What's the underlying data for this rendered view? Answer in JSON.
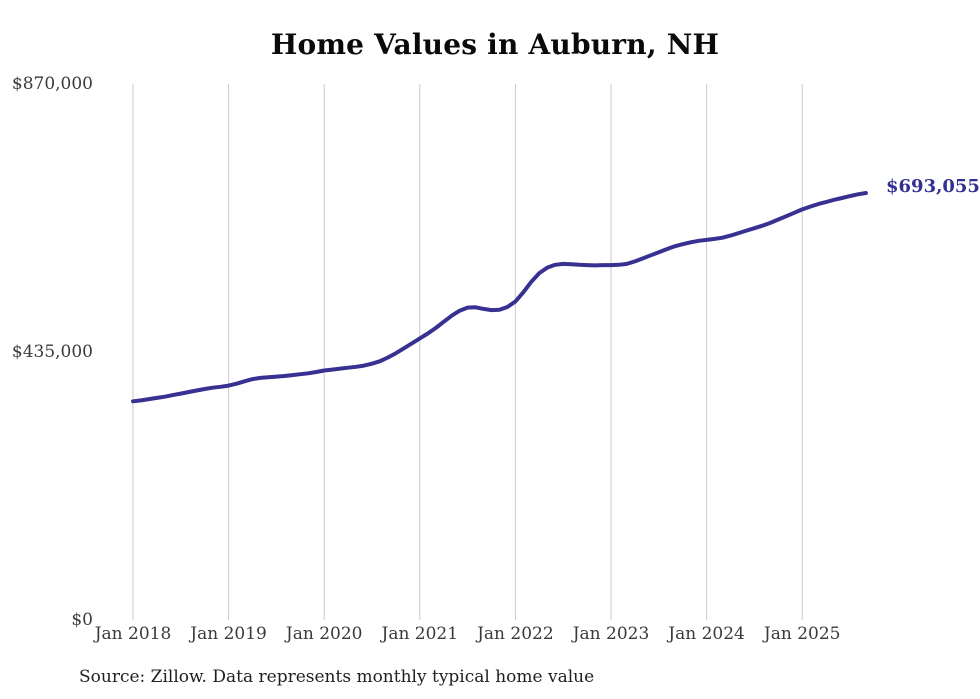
{
  "title": "Home Values in Auburn, NH",
  "source_note": "Source: Zillow. Data represents monthly typical home value",
  "colors": {
    "line": "#373191",
    "grid": "#cbcbcb",
    "axis_text": "#3a3a3a",
    "title_text": "#0a0a0a",
    "end_label_text": "#323092",
    "background": "#ffffff"
  },
  "chart_data": {
    "type": "line",
    "title": "Home Values in Auburn, NH",
    "x_tick_labels": [
      "Jan 2018",
      "Jan 2019",
      "Jan 2020",
      "Jan 2021",
      "Jan 2022",
      "Jan 2023",
      "Jan 2024",
      "Jan 2025"
    ],
    "y_tick_labels": [
      "$870,000",
      "$435,000",
      "$0"
    ],
    "y_tick_values": [
      870000,
      435000,
      0
    ],
    "ylim": [
      0,
      870000
    ],
    "grid": "vertical-only",
    "legend": "none",
    "final_value": 693055,
    "final_value_label": "$693,055",
    "series": [
      {
        "name": "Typical home value",
        "start_month": "2018-01",
        "end_month": "2025-09",
        "interval": "monthly",
        "values": [
          355000,
          356500,
          358500,
          360500,
          362500,
          365000,
          367500,
          370000,
          372500,
          375000,
          377000,
          378500,
          380500,
          383500,
          387500,
          391000,
          393000,
          394000,
          395000,
          396000,
          397500,
          399000,
          400500,
          402500,
          405000,
          406500,
          408000,
          409500,
          411000,
          413000,
          416000,
          420000,
          426000,
          433000,
          441000,
          449000,
          457000,
          465000,
          474000,
          484000,
          494000,
          502000,
          507000,
          507500,
          505000,
          503000,
          503500,
          508000,
          517000,
          532000,
          549000,
          563000,
          572000,
          576500,
          578000,
          577500,
          576500,
          576000,
          575500,
          576000,
          576000,
          576500,
          578000,
          582000,
          587000,
          592000,
          597000,
          602000,
          606500,
          610000,
          613000,
          615500,
          617000,
          618500,
          620500,
          624000,
          628000,
          632000,
          636000,
          640000,
          644500,
          650000,
          655500,
          661000,
          666500,
          671000,
          675000,
          678500,
          682000,
          685000,
          688000,
          691000,
          693055
        ]
      }
    ]
  }
}
